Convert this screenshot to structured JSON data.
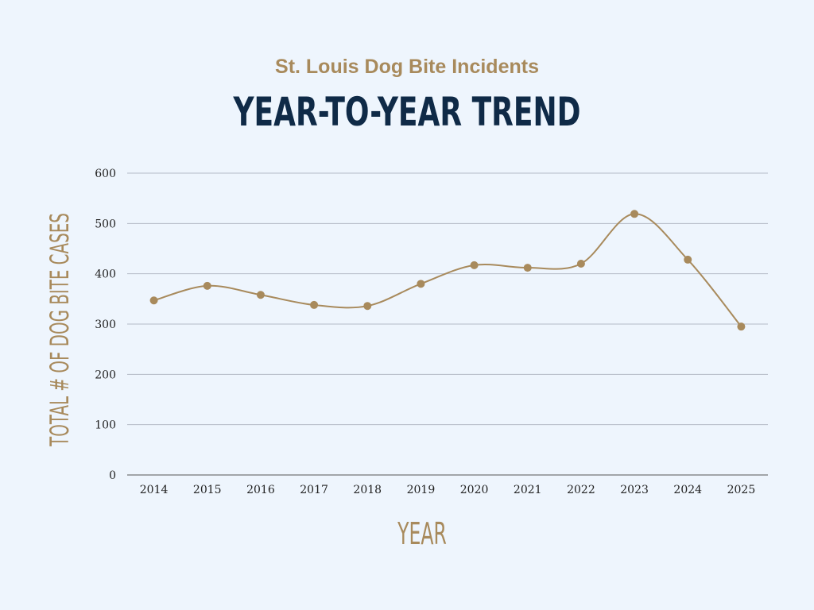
{
  "chart_data": {
    "type": "line",
    "subtitle": "St. Louis Dog Bite Incidents",
    "title": "YEAR-TO-YEAR TREND",
    "xlabel": "YEAR",
    "ylabel": "TOTAL # OF DOG BITE CASES",
    "categories": [
      "2014",
      "2015",
      "2016",
      "2017",
      "2018",
      "2019",
      "2020",
      "2021",
      "2022",
      "2023",
      "2024",
      "2025"
    ],
    "values": [
      347,
      376,
      358,
      338,
      336,
      380,
      417,
      412,
      420,
      519,
      428,
      295
    ],
    "ylim": [
      0,
      600
    ],
    "yticks": [
      0,
      100,
      200,
      300,
      400,
      500,
      600
    ],
    "grid": true,
    "smooth": true,
    "colors": {
      "line": "#a88a5c",
      "grid": "#b4bac6",
      "title": "#0f2a47",
      "accent": "#a88a5c"
    }
  }
}
